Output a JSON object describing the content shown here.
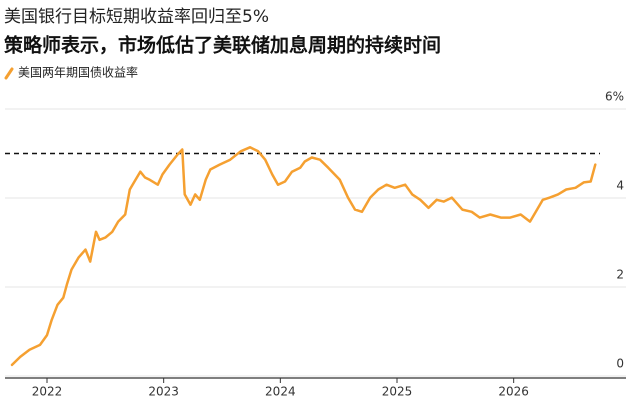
{
  "chart_data": {
    "type": "line",
    "title": "美国银行目标短期收益率回归至5%",
    "subtitle": "策略师表示，市场低估了美联储加息周期的持续时间",
    "series": [
      {
        "name": "美国两年期国债收益率",
        "color": "#f5a031",
        "x": [
          2021.7,
          2021.77,
          2021.85,
          2021.94,
          2022.0,
          2022.04,
          2022.09,
          2022.14,
          2022.17,
          2022.21,
          2022.27,
          2022.33,
          2022.37,
          2022.42,
          2022.45,
          2022.5,
          2022.56,
          2022.61,
          2022.67,
          2022.71,
          2022.75,
          2022.8,
          2022.84,
          2022.88,
          2022.95,
          2022.99,
          2023.05,
          2023.12,
          2023.16,
          2023.18,
          2023.23,
          2023.27,
          2023.31,
          2023.36,
          2023.4,
          2023.48,
          2023.57,
          2023.66,
          2023.74,
          2023.81,
          2023.87,
          2023.93,
          2023.98,
          2024.04,
          2024.1,
          2024.17,
          2024.21,
          2024.27,
          2024.34,
          2024.41,
          2024.51,
          2024.58,
          2024.64,
          2024.7,
          2024.77,
          2024.84,
          2024.91,
          2024.98,
          2025.07,
          2025.13,
          2025.2,
          2025.27,
          2025.34,
          2025.4,
          2025.47,
          2025.56,
          2025.64,
          2025.71,
          2025.8,
          2025.89,
          2025.97,
          2026.06,
          2026.14,
          2026.19,
          2026.25,
          2026.31,
          2026.38,
          2026.45,
          2026.53,
          2026.6,
          2026.66,
          2026.7
        ],
        "values": [
          0.25,
          0.43,
          0.59,
          0.7,
          0.92,
          1.26,
          1.6,
          1.76,
          2.05,
          2.39,
          2.66,
          2.84,
          2.57,
          3.24,
          3.06,
          3.11,
          3.24,
          3.47,
          3.63,
          4.19,
          4.37,
          4.59,
          4.46,
          4.41,
          4.3,
          4.53,
          4.75,
          4.98,
          5.09,
          4.08,
          3.85,
          4.08,
          3.96,
          4.41,
          4.64,
          4.75,
          4.86,
          5.05,
          5.14,
          5.05,
          4.86,
          4.53,
          4.3,
          4.37,
          4.59,
          4.68,
          4.82,
          4.91,
          4.86,
          4.68,
          4.41,
          4.01,
          3.74,
          3.69,
          4.01,
          4.19,
          4.3,
          4.23,
          4.3,
          4.08,
          3.96,
          3.78,
          3.96,
          3.92,
          4.01,
          3.74,
          3.69,
          3.56,
          3.63,
          3.56,
          3.56,
          3.63,
          3.47,
          3.69,
          3.96,
          4.01,
          4.08,
          4.19,
          4.23,
          4.35,
          4.37,
          4.75
        ]
      }
    ],
    "reference_line": 5,
    "xlim": [
      2021.64,
      2026.74
    ],
    "xticks": [
      2022,
      2023,
      2024,
      2025,
      2026
    ],
    "ylim": [
      0,
      6
    ],
    "yticks": [
      0,
      2,
      4,
      {
        "value": 6,
        "label": "6%"
      }
    ],
    "grid": true
  }
}
